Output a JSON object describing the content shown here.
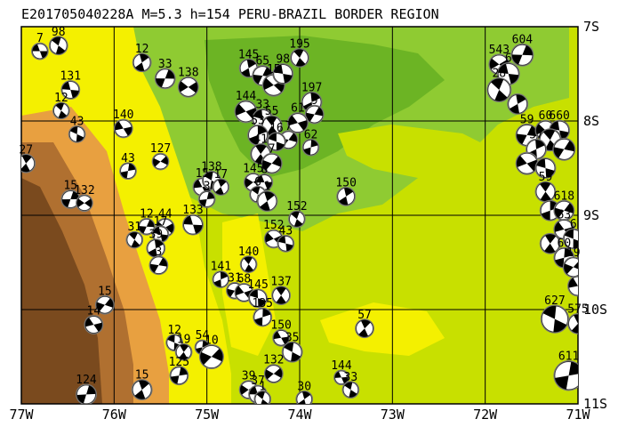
{
  "title": "E201705040228A M=5.3 h=154 PERU-BRAZIL BORDER REGION",
  "colors": {
    "lowland": "#c8e000",
    "green": "#8fcb32",
    "green_dark": "#6cb424",
    "yellow": "#f4f000",
    "yellow_light": "#ffff3c",
    "orange": "#e8a040",
    "brown": "#b07030",
    "brown_dark": "#7a4a1e",
    "grid": "#000000",
    "beach_fill": "#000000",
    "beach_bg": "#ffffff",
    "beach_edge": "#555555"
  },
  "axes": {
    "lon_min": -77,
    "lon_max": -71,
    "lat_min": -11,
    "lat_max": -7,
    "x_ticks": [
      {
        "value": -77,
        "label": "77W"
      },
      {
        "value": -76,
        "label": "76W"
      },
      {
        "value": -75,
        "label": "75W"
      },
      {
        "value": -74,
        "label": "74W"
      },
      {
        "value": -73,
        "label": "73W"
      },
      {
        "value": -72,
        "label": "72W"
      },
      {
        "value": -71,
        "label": "71W"
      }
    ],
    "y_ticks": [
      {
        "value": -7,
        "label": "7S"
      },
      {
        "value": -8,
        "label": "8S"
      },
      {
        "value": -9,
        "label": "9S"
      },
      {
        "value": -10,
        "label": "10S"
      },
      {
        "value": -11,
        "label": "11S"
      }
    ]
  },
  "chart_data": {
    "type": "scatter",
    "title": "E201705040228A M=5.3 h=154 PERU-BRAZIL BORDER REGION",
    "xlabel": "",
    "ylabel": "",
    "xlim": [
      -77,
      -71
    ],
    "ylim": [
      -11,
      -7
    ],
    "grid": true,
    "series": [
      {
        "points": [
          {
            "lon": -76.8,
            "lat": -7.26,
            "label": "7",
            "r": 0.08
          },
          {
            "lon": -76.6,
            "lat": -7.2,
            "label": "98",
            "r": 0.09
          },
          {
            "lon": -75.7,
            "lat": -7.38,
            "label": "12",
            "r": 0.09
          },
          {
            "lon": -75.45,
            "lat": -7.55,
            "label": "33",
            "r": 0.1
          },
          {
            "lon": -75.2,
            "lat": -7.64,
            "label": "138",
            "r": 0.1
          },
          {
            "lon": -76.47,
            "lat": -7.67,
            "label": "131",
            "r": 0.09
          },
          {
            "lon": -76.57,
            "lat": -7.89,
            "label": "12",
            "r": 0.08
          },
          {
            "lon": -74.55,
            "lat": -7.44,
            "label": "145",
            "r": 0.09
          },
          {
            "lon": -74.4,
            "lat": -7.52,
            "label": "65",
            "r": 0.1
          },
          {
            "lon": -74.28,
            "lat": -7.62,
            "label": "15",
            "r": 0.11
          },
          {
            "lon": -74.18,
            "lat": -7.5,
            "label": "98",
            "r": 0.1
          },
          {
            "lon": -74.0,
            "lat": -7.33,
            "label": "195",
            "r": 0.09
          },
          {
            "lon": -73.87,
            "lat": -7.8,
            "label": "197",
            "r": 0.1
          },
          {
            "lon": -73.84,
            "lat": -7.93,
            "label": "9",
            "r": 0.09
          },
          {
            "lon": -74.58,
            "lat": -7.9,
            "label": "144",
            "r": 0.11
          },
          {
            "lon": -74.4,
            "lat": -7.98,
            "label": "33",
            "r": 0.1
          },
          {
            "lon": -74.3,
            "lat": -8.05,
            "label": "55",
            "r": 0.1
          },
          {
            "lon": -74.45,
            "lat": -8.15,
            "label": "53",
            "r": 0.1
          },
          {
            "lon": -74.12,
            "lat": -8.2,
            "label": "7",
            "r": 0.09
          },
          {
            "lon": -74.02,
            "lat": -8.02,
            "label": "61",
            "r": 0.1
          },
          {
            "lon": -74.25,
            "lat": -8.22,
            "label": "16",
            "r": 0.09
          },
          {
            "lon": -74.42,
            "lat": -8.35,
            "label": "41",
            "r": 0.1
          },
          {
            "lon": -73.88,
            "lat": -8.28,
            "label": "62",
            "r": 0.08
          },
          {
            "lon": -74.3,
            "lat": -8.45,
            "label": "7",
            "r": 0.1
          },
          {
            "lon": -75.9,
            "lat": -8.08,
            "label": "140",
            "r": 0.09
          },
          {
            "lon": -76.4,
            "lat": -8.14,
            "label": "43",
            "r": 0.08
          },
          {
            "lon": -76.95,
            "lat": -8.45,
            "label": "27",
            "r": 0.09
          },
          {
            "lon": -75.85,
            "lat": -8.53,
            "label": "43",
            "r": 0.08
          },
          {
            "lon": -75.5,
            "lat": -8.43,
            "label": "127",
            "r": 0.08
          },
          {
            "lon": -75.05,
            "lat": -8.7,
            "label": "15",
            "r": 0.09
          },
          {
            "lon": -74.95,
            "lat": -8.63,
            "label": "138",
            "r": 0.09
          },
          {
            "lon": -74.85,
            "lat": -8.7,
            "label": "17",
            "r": 0.08
          },
          {
            "lon": -75.0,
            "lat": -8.83,
            "label": "3",
            "r": 0.08
          },
          {
            "lon": -74.5,
            "lat": -8.65,
            "label": "145",
            "r": 0.09
          },
          {
            "lon": -74.38,
            "lat": -8.65,
            "label": "8",
            "r": 0.08
          },
          {
            "lon": -74.45,
            "lat": -8.78,
            "label": "6",
            "r": 0.08
          },
          {
            "lon": -74.35,
            "lat": -8.85,
            "label": "1",
            "r": 0.1
          },
          {
            "lon": -76.47,
            "lat": -8.83,
            "label": "15",
            "r": 0.09
          },
          {
            "lon": -76.32,
            "lat": -8.87,
            "label": "132",
            "r": 0.08
          },
          {
            "lon": -75.15,
            "lat": -9.1,
            "label": "133",
            "r": 0.1
          },
          {
            "lon": -74.03,
            "lat": -9.04,
            "label": "152",
            "r": 0.08
          },
          {
            "lon": -73.5,
            "lat": -8.8,
            "label": "150",
            "r": 0.09
          },
          {
            "lon": -75.65,
            "lat": -9.12,
            "label": "12",
            "r": 0.08
          },
          {
            "lon": -75.45,
            "lat": -9.13,
            "label": "44",
            "r": 0.09
          },
          {
            "lon": -75.5,
            "lat": -9.2,
            "label": "17",
            "r": 0.08
          },
          {
            "lon": -75.78,
            "lat": -9.26,
            "label": "31",
            "r": 0.08
          },
          {
            "lon": -75.55,
            "lat": -9.35,
            "label": "39",
            "r": 0.09
          },
          {
            "lon": -75.52,
            "lat": -9.53,
            "label": "3",
            "r": 0.09
          },
          {
            "lon": -74.28,
            "lat": -9.25,
            "label": "152",
            "r": 0.09
          },
          {
            "lon": -74.15,
            "lat": -9.3,
            "label": "43",
            "r": 0.08
          },
          {
            "lon": -74.55,
            "lat": -9.52,
            "label": "140",
            "r": 0.08
          },
          {
            "lon": -74.85,
            "lat": -9.68,
            "label": "141",
            "r": 0.08
          },
          {
            "lon": -74.7,
            "lat": -9.8,
            "label": "31",
            "r": 0.08
          },
          {
            "lon": -74.6,
            "lat": -9.82,
            "label": "68",
            "r": 0.09
          },
          {
            "lon": -74.45,
            "lat": -9.88,
            "label": "145",
            "r": 0.09
          },
          {
            "lon": -74.2,
            "lat": -9.85,
            "label": "137",
            "r": 0.09
          },
          {
            "lon": -74.4,
            "lat": -10.08,
            "label": "135",
            "r": 0.09
          },
          {
            "lon": -76.1,
            "lat": -9.95,
            "label": "15",
            "r": 0.09
          },
          {
            "lon": -76.22,
            "lat": -10.16,
            "label": "14",
            "r": 0.09
          },
          {
            "lon": -75.35,
            "lat": -10.35,
            "label": "12",
            "r": 0.08
          },
          {
            "lon": -75.25,
            "lat": -10.45,
            "label": "19",
            "r": 0.08
          },
          {
            "lon": -75.05,
            "lat": -10.4,
            "label": "54",
            "r": 0.07
          },
          {
            "lon": -74.95,
            "lat": -10.5,
            "label": "10",
            "r": 0.12
          },
          {
            "lon": -74.2,
            "lat": -10.3,
            "label": "150",
            "r": 0.08
          },
          {
            "lon": -74.08,
            "lat": -10.45,
            "label": "35",
            "r": 0.1
          },
          {
            "lon": -73.3,
            "lat": -10.2,
            "label": "57",
            "r": 0.09
          },
          {
            "lon": -75.3,
            "lat": -10.7,
            "label": "125",
            "r": 0.09
          },
          {
            "lon": -74.28,
            "lat": -10.68,
            "label": "132",
            "r": 0.09
          },
          {
            "lon": -73.55,
            "lat": -10.72,
            "label": "144",
            "r": 0.07
          },
          {
            "lon": -73.45,
            "lat": -10.85,
            "label": "33",
            "r": 0.08
          },
          {
            "lon": -75.7,
            "lat": -10.85,
            "label": "15",
            "r": 0.1
          },
          {
            "lon": -76.3,
            "lat": -10.9,
            "label": "124",
            "r": 0.1
          },
          {
            "lon": -74.55,
            "lat": -10.85,
            "label": "39",
            "r": 0.09
          },
          {
            "lon": -74.45,
            "lat": -10.9,
            "label": "37",
            "r": 0.09
          },
          {
            "lon": -74.4,
            "lat": -10.95,
            "label": "1",
            "r": 0.08
          },
          {
            "lon": -73.95,
            "lat": -10.95,
            "label": "30",
            "r": 0.08
          },
          {
            "lon": -71.6,
            "lat": -7.3,
            "label": "604",
            "r": 0.11
          },
          {
            "lon": -71.85,
            "lat": -7.4,
            "label": "543",
            "r": 0.1
          },
          {
            "lon": -71.75,
            "lat": -7.5,
            "label": "6",
            "r": 0.11
          },
          {
            "lon": -71.85,
            "lat": -7.67,
            "label": "28",
            "r": 0.12
          },
          {
            "lon": -71.65,
            "lat": -7.82,
            "label": "",
            "r": 0.1
          },
          {
            "lon": -71.55,
            "lat": -8.15,
            "label": "59",
            "r": 0.11
          },
          {
            "lon": -71.35,
            "lat": -8.1,
            "label": "60",
            "r": 0.1
          },
          {
            "lon": -71.2,
            "lat": -8.1,
            "label": "660",
            "r": 0.1
          },
          {
            "lon": -71.3,
            "lat": -8.2,
            "label": "",
            "r": 0.11
          },
          {
            "lon": -71.45,
            "lat": -8.3,
            "label": "57",
            "r": 0.1
          },
          {
            "lon": -71.15,
            "lat": -8.3,
            "label": "",
            "r": 0.11
          },
          {
            "lon": -71.55,
            "lat": -8.45,
            "label": "",
            "r": 0.11
          },
          {
            "lon": -71.35,
            "lat": -8.5,
            "label": "",
            "r": 0.1
          },
          {
            "lon": -71.35,
            "lat": -8.75,
            "label": "59",
            "r": 0.1
          },
          {
            "lon": -71.3,
            "lat": -8.95,
            "label": "",
            "r": 0.1
          },
          {
            "lon": -71.15,
            "lat": -8.95,
            "label": "618",
            "r": 0.1
          },
          {
            "lon": -71.15,
            "lat": -9.15,
            "label": "63",
            "r": 0.1
          },
          {
            "lon": -71.05,
            "lat": -9.25,
            "label": "6",
            "r": 0.1
          },
          {
            "lon": -71.3,
            "lat": -9.3,
            "label": "",
            "r": 0.1
          },
          {
            "lon": -71.15,
            "lat": -9.45,
            "label": "60",
            "r": 0.1
          },
          {
            "lon": -71.05,
            "lat": -9.55,
            "label": "19",
            "r": 0.1
          },
          {
            "lon": -71.0,
            "lat": -9.75,
            "label": "",
            "r": 0.1
          },
          {
            "lon": -71.25,
            "lat": -10.1,
            "label": "627",
            "r": 0.14
          },
          {
            "lon": -71.0,
            "lat": -10.15,
            "label": "575",
            "r": 0.1
          },
          {
            "lon": -71.1,
            "lat": -10.7,
            "label": "611",
            "r": 0.15
          }
        ]
      }
    ]
  }
}
